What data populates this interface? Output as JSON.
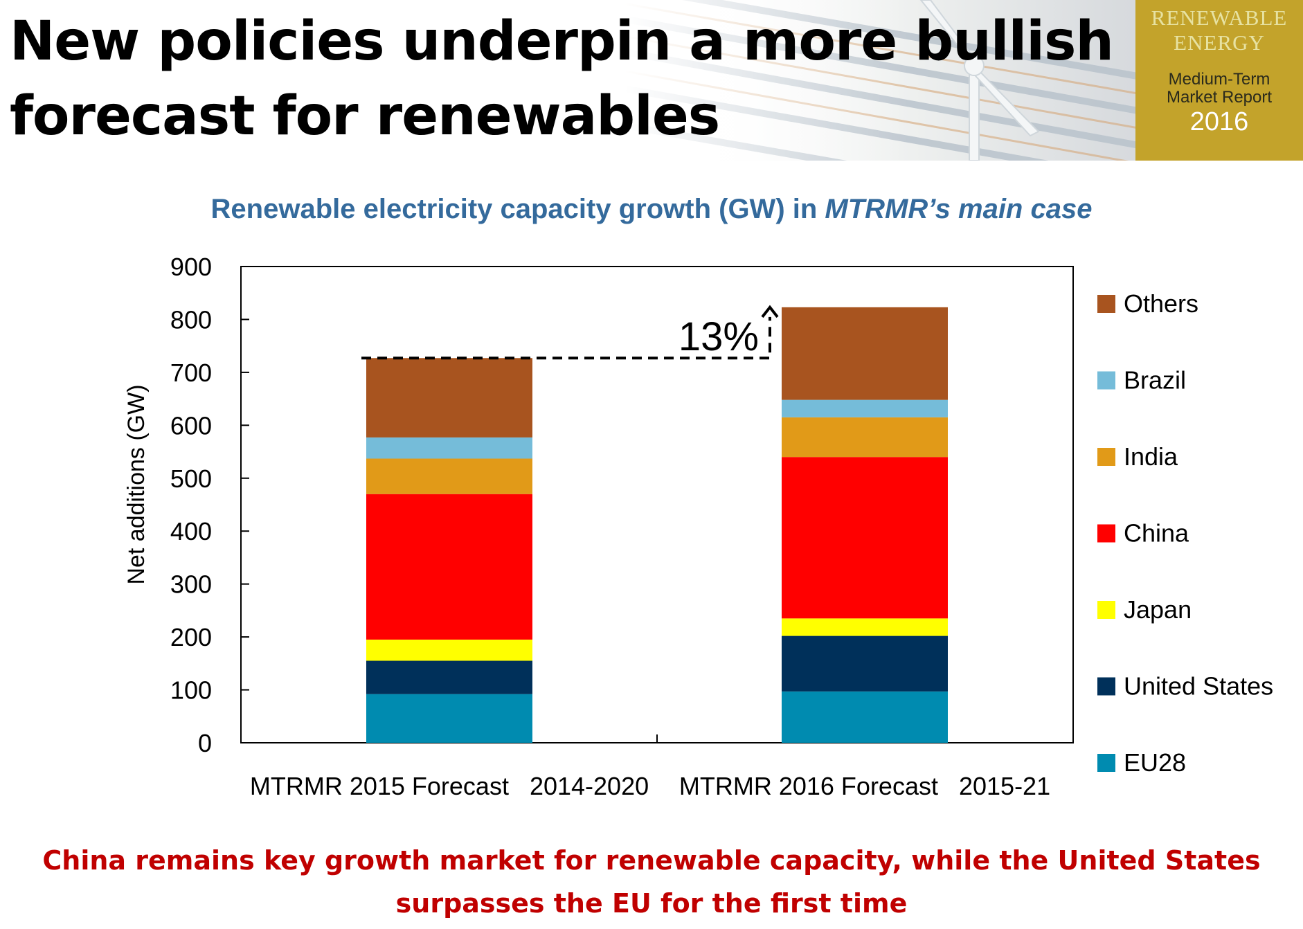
{
  "slide": {
    "title_line1": "New policies underpin a more bullish",
    "title_line2": "forecast for renewables",
    "badge": {
      "line1": "RENEWABLE",
      "line2": "ENERGY",
      "line3": "Medium-Term",
      "line4": "Market Report",
      "year": "2016",
      "color": "#c3a32b"
    },
    "footer_line1": "China remains key growth market for renewable capacity, while the United States",
    "footer_line2": "surpasses the EU for the first time"
  },
  "chart_data": {
    "type": "bar",
    "stacked": true,
    "title": "Renewable electricity capacity growth (GW) in ",
    "title_italic": "MTRMR’s main case",
    "xlabel": "",
    "ylabel": "Net additions (GW)",
    "ylim": [
      0,
      900
    ],
    "yticks": [
      0,
      100,
      200,
      300,
      400,
      500,
      600,
      700,
      800,
      900
    ],
    "grid": false,
    "legend_position": "right",
    "categories": [
      "MTRMR 2015 Forecast   2014-2020",
      "MTRMR 2016 Forecast   2015-21"
    ],
    "series": [
      {
        "name": "EU28",
        "color": "#008bb0",
        "values": [
          92,
          97
        ]
      },
      {
        "name": "United States",
        "color": "#00305a",
        "values": [
          63,
          105
        ]
      },
      {
        "name": "Japan",
        "color": "#ffff00",
        "values": [
          40,
          33
        ]
      },
      {
        "name": "China",
        "color": "#ff0000",
        "values": [
          275,
          305
        ]
      },
      {
        "name": "India",
        "color": "#e19a18",
        "values": [
          67,
          75
        ]
      },
      {
        "name": "Brazil",
        "color": "#75bcd9",
        "values": [
          40,
          33
        ]
      },
      {
        "name": "Others",
        "color": "#a8541f",
        "values": [
          150,
          175
        ]
      }
    ],
    "annotation": {
      "text": "13%",
      "from_value": 727,
      "to_value": 823
    }
  }
}
